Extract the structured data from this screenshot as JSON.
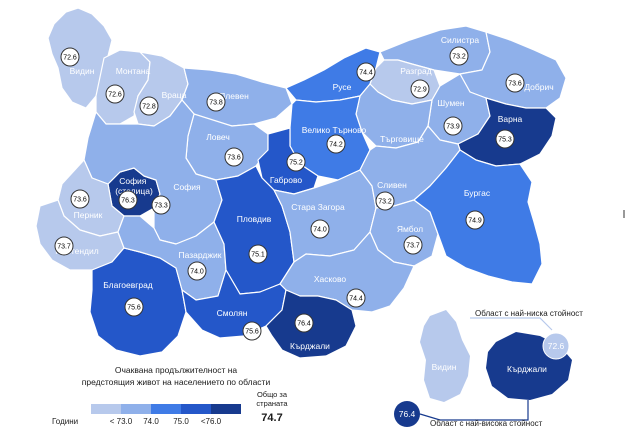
{
  "caption_lines": [
    "Очаквана продължителност на",
    "предстоящия живот на населението по области"
  ],
  "legend": {
    "unit_label": "Години",
    "ticks": [
      "< 73.0",
      "74.0",
      "75.0",
      "<76.0"
    ],
    "colors": [
      "#b7c9ec",
      "#8fb0ea",
      "#3f7be6",
      "#2457c9",
      "#173a8e"
    ]
  },
  "national_total": {
    "label_lines": [
      "Общо за",
      "страната"
    ],
    "value": "74.7"
  },
  "regions": [
    {
      "id": "vidin",
      "name": "Видин",
      "value": "72.6"
    },
    {
      "id": "montana",
      "name": "Монтана",
      "value": "72.6"
    },
    {
      "id": "vratsa",
      "name": "Враца",
      "value": "72.8"
    },
    {
      "id": "pleven",
      "name": "Плевен",
      "value": "73.8"
    },
    {
      "id": "lovech",
      "name": "Ловеч",
      "value": "73.6"
    },
    {
      "id": "ruse",
      "name": "Русе",
      "value": "74.4"
    },
    {
      "id": "silistra",
      "name": "Силистра",
      "value": "73.2"
    },
    {
      "id": "razgrad",
      "name": "Разград",
      "value": "72.9"
    },
    {
      "id": "dobrich",
      "name": "Добрич",
      "value": "73.6"
    },
    {
      "id": "shumen",
      "name": "Шумен",
      "value": "73.9"
    },
    {
      "id": "targovishte",
      "name": "Търговище",
      "value": ""
    },
    {
      "id": "varna",
      "name": "Варна",
      "value": "75.3"
    },
    {
      "id": "veliko-tarnovo",
      "name": "Велико Търново",
      "value": "74.2"
    },
    {
      "id": "gabrovo",
      "name": "Габрово",
      "value": "75.2"
    },
    {
      "id": "sofia-capital",
      "name": "София (столица)",
      "value": "76.3"
    },
    {
      "id": "sofia",
      "name": "София",
      "value": "73.3"
    },
    {
      "id": "pernik",
      "name": "Перник",
      "value": "73.6"
    },
    {
      "id": "kyustendil",
      "name": "Кюстендил",
      "value": "73.7"
    },
    {
      "id": "blagoevgrad",
      "name": "Благоевград",
      "value": "75.6"
    },
    {
      "id": "pazardzhik",
      "name": "Пазарджик",
      "value": "74.0"
    },
    {
      "id": "plovdiv",
      "name": "Пловдив",
      "value": "75.1"
    },
    {
      "id": "stara-zagora",
      "name": "Стара Загора",
      "value": "74.0"
    },
    {
      "id": "sliven",
      "name": "Сливен",
      "value": "73.2"
    },
    {
      "id": "yambol",
      "name": "Ямбол",
      "value": "73.7"
    },
    {
      "id": "burgas",
      "name": "Бургас",
      "value": "74.9"
    },
    {
      "id": "haskovo",
      "name": "Хасково",
      "value": "74.4"
    },
    {
      "id": "smolyan",
      "name": "Смолян",
      "value": "75.6"
    },
    {
      "id": "kardzhali",
      "name": "Кърджали",
      "value": "76.4"
    }
  ],
  "inset": {
    "lowest_note": "Област с най-ниска стойност",
    "lowest_name": "Видин",
    "lowest_value": "72.6",
    "highest_note": "Област с най-висока стойност",
    "highest_name": "Кърджали",
    "highest_value": "76.4"
  }
}
